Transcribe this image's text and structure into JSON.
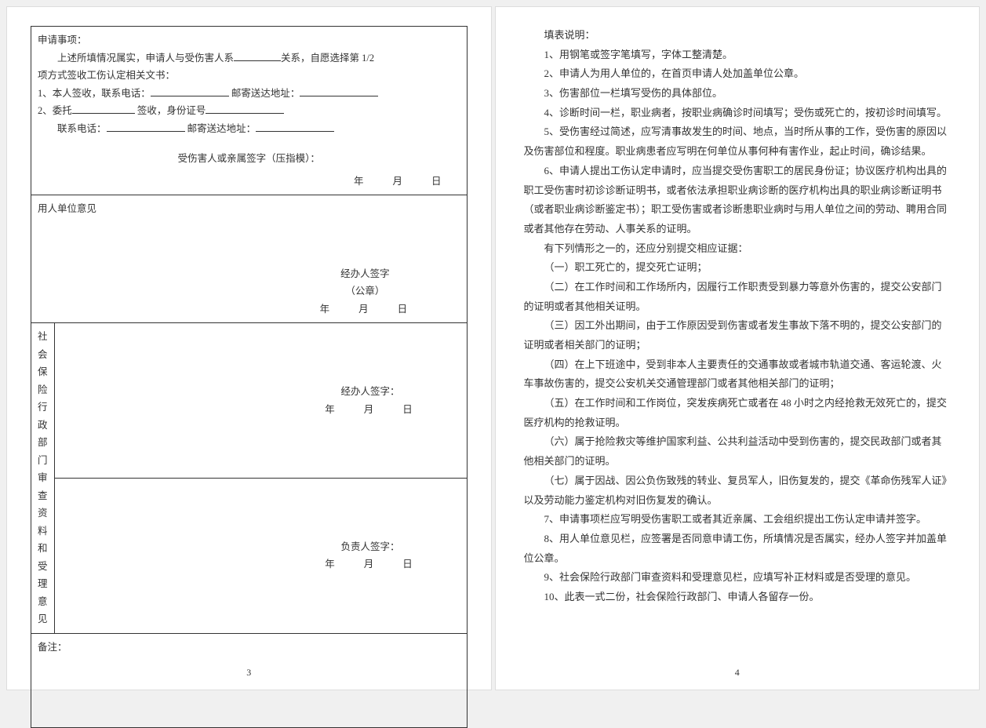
{
  "page_left_num": "3",
  "page_right_num": "4",
  "section1": {
    "title": "申请事项：",
    "line1a": "上述所填情况属实，申请人与受伤害人系",
    "line1b": "关系，自愿选择第 1/2",
    "line2": "项方式签收工伤认定相关文书：",
    "opt1a": "1、本人签收，联系电话：",
    "opt1b": "邮寄送达地址：",
    "opt2a": "2、委托",
    "opt2b": "签收，身份证号",
    "opt2c": "联系电话：",
    "opt2d": "邮寄送达地址：",
    "sign_label": "受伤害人或亲属签字（压指模）：",
    "date": "年　　月　　日"
  },
  "section2": {
    "label": "用人单位意见",
    "sign": "经办人签字",
    "seal": "（公章）",
    "date": "年　　月　　日"
  },
  "section3": {
    "label": "社会保险行政部门审查资料和受理意见",
    "sign1": "经办人签字：",
    "date1": "年　　月　　日",
    "sign2": "负责人签字：",
    "date2": "年　　月　　日"
  },
  "remark_label": "备注：",
  "instructions": {
    "title": "填表说明：",
    "items": [
      "1、用钢笔或签字笔填写，字体工整清楚。",
      "2、申请人为用人单位的，在首页申请人处加盖单位公章。",
      "3、伤害部位一栏填写受伤的具体部位。",
      "4、诊断时间一栏，职业病者，按职业病确诊时间填写；受伤或死亡的，按初诊时间填写。",
      "5、受伤害经过简述，应写清事故发生的时间、地点，当时所从事的工作，受伤害的原因以及伤害部位和程度。职业病患者应写明在何单位从事何种有害作业，起止时间，确诊结果。",
      "6、申请人提出工伤认定申请时，应当提交受伤害职工的居民身份证；协议医疗机构出具的职工受伤害时初诊诊断证明书，或者依法承担职业病诊断的医疗机构出具的职业病诊断证明书（或者职业病诊断鉴定书）；职工受伤害或者诊断患职业病时与用人单位之间的劳动、聘用合同或者其他存在劳动、人事关系的证明。",
      "有下列情形之一的，还应分别提交相应证据：",
      "（一）职工死亡的，提交死亡证明；",
      "（二）在工作时间和工作场所内，因履行工作职责受到暴力等意外伤害的，提交公安部门的证明或者其他相关证明。",
      "（三）因工外出期间，由于工作原因受到伤害或者发生事故下落不明的，提交公安部门的证明或者相关部门的证明；",
      "（四）在上下班途中，受到非本人主要责任的交通事故或者城市轨道交通、客运轮渡、火车事故伤害的，提交公安机关交通管理部门或者其他相关部门的证明；",
      "（五）在工作时间和工作岗位，突发疾病死亡或者在 48 小时之内经抢救无效死亡的，提交医疗机构的抢救证明。",
      "（六）属于抢险救灾等维护国家利益、公共利益活动中受到伤害的，提交民政部门或者其他相关部门的证明。",
      "（七）属于因战、因公负伤致残的转业、复员军人，旧伤复发的，提交《革命伤残军人证》以及劳动能力鉴定机构对旧伤复发的确认。",
      "7、申请事项栏应写明受伤害职工或者其近亲属、工会组织提出工伤认定申请并签字。",
      "8、用人单位意见栏，应签署是否同意申请工伤，所填情况是否属实，经办人签字并加盖单位公章。",
      "9、社会保险行政部门审查资料和受理意见栏，应填写补正材料或是否受理的意见。",
      "10、此表一式二份，社会保险行政部门、申请人各留存一份。"
    ]
  }
}
